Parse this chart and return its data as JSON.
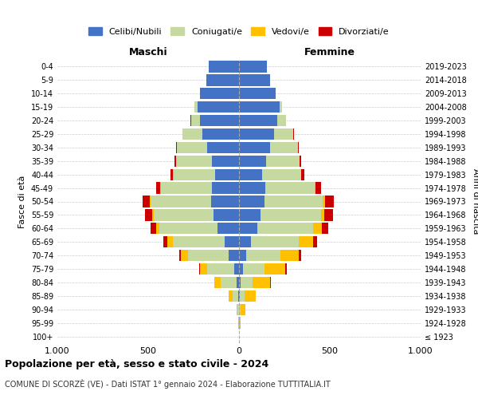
{
  "age_groups": [
    "100+",
    "95-99",
    "90-94",
    "85-89",
    "80-84",
    "75-79",
    "70-74",
    "65-69",
    "60-64",
    "55-59",
    "50-54",
    "45-49",
    "40-44",
    "35-39",
    "30-34",
    "25-29",
    "20-24",
    "15-19",
    "10-14",
    "5-9",
    "0-4"
  ],
  "birth_years_right": [
    "≤ 1923",
    "1924-1928",
    "1929-1933",
    "1934-1938",
    "1939-1943",
    "1944-1948",
    "1949-1953",
    "1954-1958",
    "1959-1963",
    "1964-1968",
    "1969-1973",
    "1974-1978",
    "1979-1983",
    "1984-1988",
    "1989-1993",
    "1994-1998",
    "1999-2003",
    "2004-2008",
    "2009-2013",
    "2014-2018",
    "2019-2023"
  ],
  "colors": {
    "celibi": "#4472c4",
    "coniugati": "#c5d9a0",
    "vedovi": "#ffc000",
    "divorziati": "#cc0000"
  },
  "males": {
    "celibi": [
      0,
      0,
      2,
      5,
      15,
      25,
      55,
      80,
      120,
      140,
      155,
      150,
      130,
      150,
      175,
      200,
      215,
      230,
      215,
      180,
      165
    ],
    "coniugati": [
      0,
      2,
      8,
      30,
      85,
      150,
      225,
      285,
      320,
      330,
      330,
      280,
      230,
      195,
      165,
      110,
      50,
      15,
      2,
      0,
      0
    ],
    "vedovi": [
      0,
      2,
      5,
      20,
      35,
      40,
      40,
      30,
      15,
      8,
      5,
      3,
      2,
      1,
      0,
      0,
      0,
      0,
      0,
      0,
      0
    ],
    "divorziati": [
      0,
      0,
      0,
      2,
      3,
      5,
      10,
      20,
      30,
      40,
      40,
      25,
      15,
      8,
      5,
      2,
      1,
      0,
      0,
      0,
      0
    ]
  },
  "females": {
    "celibi": [
      0,
      0,
      2,
      5,
      10,
      20,
      40,
      65,
      100,
      120,
      140,
      145,
      125,
      148,
      170,
      195,
      210,
      225,
      200,
      170,
      155
    ],
    "coniugati": [
      0,
      2,
      8,
      25,
      65,
      120,
      190,
      265,
      310,
      330,
      320,
      270,
      215,
      185,
      155,
      105,
      48,
      12,
      2,
      0,
      0
    ],
    "vedovi": [
      2,
      8,
      25,
      60,
      95,
      115,
      100,
      80,
      45,
      20,
      12,
      5,
      3,
      1,
      0,
      0,
      0,
      0,
      0,
      0,
      0
    ],
    "divorziati": [
      0,
      0,
      0,
      2,
      5,
      8,
      12,
      22,
      38,
      48,
      48,
      30,
      18,
      10,
      5,
      2,
      1,
      0,
      0,
      0,
      0
    ]
  },
  "title": "Popolazione per età, sesso e stato civile - 2024",
  "subtitle": "COMUNE DI SCORZÈ (VE) - Dati ISTAT 1° gennaio 2024 - Elaborazione TUTTITALIA.IT",
  "xlabel_left": "Maschi",
  "xlabel_right": "Femmine",
  "ylabel_left": "Fasce di età",
  "ylabel_right": "Anni di nascita",
  "xlim": 1000,
  "background_color": "#ffffff",
  "grid_color": "#cccccc"
}
